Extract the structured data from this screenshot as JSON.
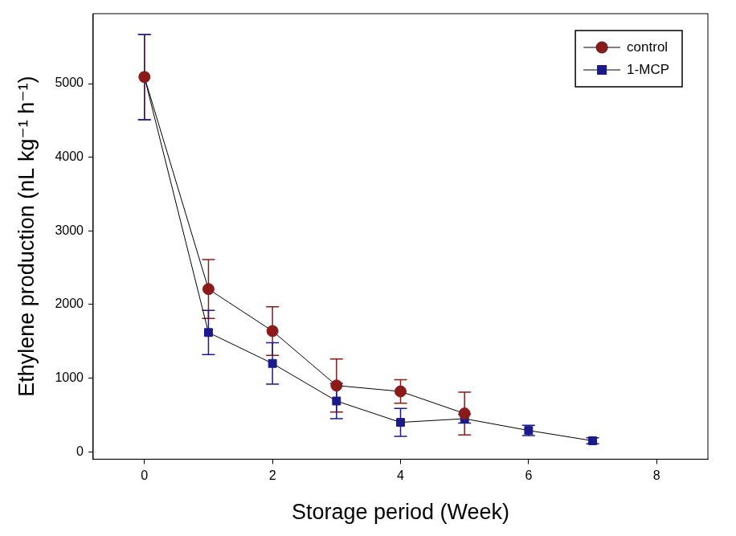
{
  "chart_data": {
    "type": "line",
    "x_label": "Storage period (Week)",
    "y_label": "Ethylene production (nL kg⁻¹ h⁻¹)",
    "xlim": [
      -0.8,
      8.8
    ],
    "xticks": [
      0,
      2,
      4,
      6,
      8
    ],
    "ylim": [
      -100,
      5950
    ],
    "yticks": [
      0,
      1000,
      2000,
      3000,
      4000,
      5000
    ],
    "grid": false,
    "legend": "upper right",
    "series": [
      {
        "name": "control",
        "color": "#8b1a1a",
        "marker": "circle",
        "line_style": "solid",
        "x": [
          0,
          1,
          2,
          3,
          4,
          5
        ],
        "values": [
          5090,
          2210,
          1640,
          900,
          820,
          520
        ],
        "errors": [
          580,
          400,
          330,
          360,
          160,
          290
        ]
      },
      {
        "name": "1-MCP",
        "color": "#1a1a8b",
        "marker": "square",
        "line_style": "solid",
        "x": [
          0,
          1,
          2,
          3,
          4,
          5,
          6,
          7
        ],
        "values": [
          5090,
          1620,
          1200,
          690,
          400,
          450,
          290,
          150
        ],
        "errors": [
          580,
          300,
          280,
          240,
          190,
          60,
          70,
          40
        ]
      }
    ]
  }
}
